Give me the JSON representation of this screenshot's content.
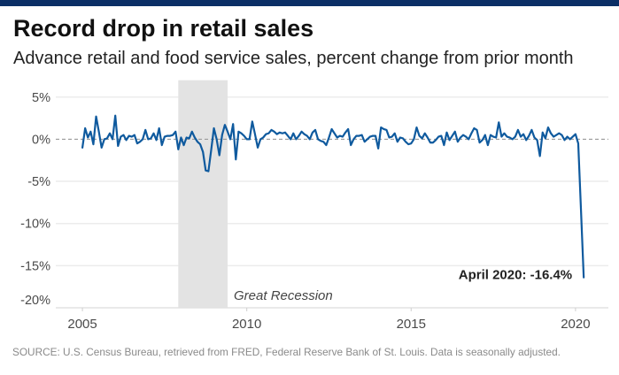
{
  "header": {
    "brand_bar_color": "#0b2f66"
  },
  "title": "Record drop in retail sales",
  "subtitle": "Advance retail and food service sales, percent change from prior month",
  "source": "SOURCE: U.S. Census Bureau, retrieved from FRED, Federal Reserve Bank of St. Louis. Data is seasonally adjusted.",
  "chart_data": {
    "type": "line",
    "title": "Record drop in retail sales",
    "subtitle": "Advance retail and food service sales, percent change from prior month",
    "xlabel": "",
    "ylabel": "",
    "x_start": "2005-01",
    "x_end": "2020-04",
    "frequency": "monthly",
    "xlim": [
      2004.19,
      2021.0
    ],
    "ylim": [
      -20,
      7
    ],
    "grid": true,
    "zero_line": "dashed",
    "legend": "none",
    "x_ticks": [
      {
        "value": 2005,
        "label": "2005"
      },
      {
        "value": 2010,
        "label": "2010"
      },
      {
        "value": 2015,
        "label": "2015"
      },
      {
        "value": 2020,
        "label": "2020"
      }
    ],
    "y_ticks": [
      {
        "value": 5,
        "label": "5%"
      },
      {
        "value": 0,
        "label": "0%"
      },
      {
        "value": -5,
        "label": "-5%"
      },
      {
        "value": -10,
        "label": "-10%"
      },
      {
        "value": -15,
        "label": "-15%"
      },
      {
        "value": -20,
        "label": "-20%"
      }
    ],
    "series": [
      {
        "name": "Advance retail and food service sales, % change from prior month",
        "color": "#0f5a9e",
        "values": [
          -1.0,
          1.3,
          0.2,
          0.9,
          -0.6,
          2.7,
          0.9,
          -1.0,
          0.0,
          0.1,
          0.7,
          0.0,
          2.8,
          -0.8,
          0.3,
          0.5,
          -0.1,
          0.4,
          0.3,
          0.5,
          -0.5,
          -0.3,
          0.0,
          1.1,
          0.0,
          0.1,
          0.7,
          -0.1,
          1.3,
          -0.7,
          0.3,
          0.4,
          0.4,
          0.5,
          0.9,
          -1.2,
          0.2,
          -0.7,
          0.2,
          0.1,
          0.9,
          0.2,
          -0.3,
          -0.6,
          -1.5,
          -3.7,
          -3.8,
          -1.3,
          1.3,
          0.0,
          -1.9,
          0.5,
          1.7,
          0.9,
          0.0,
          1.8,
          -2.4,
          0.9,
          0.7,
          0.4,
          0.0,
          0.0,
          2.1,
          0.6,
          -1.0,
          0.0,
          0.2,
          0.6,
          0.7,
          1.1,
          0.9,
          0.6,
          0.8,
          0.7,
          0.8,
          0.4,
          0.0,
          0.7,
          0.0,
          0.4,
          0.9,
          0.6,
          0.4,
          0.0,
          0.8,
          1.1,
          0.0,
          -0.2,
          -0.3,
          -0.7,
          0.2,
          1.2,
          0.7,
          0.2,
          0.4,
          0.3,
          0.8,
          1.2,
          -0.7,
          0.0,
          0.4,
          0.4,
          0.5,
          -0.3,
          0.0,
          0.3,
          0.4,
          0.4,
          -1.1,
          1.4,
          1.2,
          1.1,
          0.2,
          0.3,
          0.7,
          -0.3,
          0.2,
          0.1,
          -0.3,
          -0.6,
          -0.5,
          0.0,
          1.4,
          0.4,
          0.1,
          0.7,
          0.2,
          -0.4,
          -0.4,
          -0.1,
          0.3,
          0.4,
          -0.7,
          0.8,
          -0.1,
          0.4,
          0.9,
          -0.3,
          0.2,
          0.5,
          0.3,
          0.0,
          0.7,
          1.3,
          1.1,
          -0.4,
          -0.1,
          0.5,
          -0.7,
          0.5,
          0.3,
          0.2,
          2.0,
          0.3,
          0.7,
          0.3,
          0.2,
          0.0,
          0.3,
          1.1,
          0.3,
          0.6,
          -0.1,
          0.4,
          1.1,
          0.2,
          -0.1,
          -2.0,
          0.8,
          0.1,
          1.4,
          0.7,
          0.3,
          0.5,
          0.7,
          0.5,
          -0.1,
          0.3,
          0.0,
          0.3,
          0.6,
          -0.5,
          -8.4,
          -16.4
        ]
      }
    ],
    "shaded_regions": [
      {
        "label": "Great Recession",
        "start": "2007-12",
        "end": "2009-06",
        "color": "#e3e3e3"
      }
    ],
    "annotations": [
      {
        "text": "April 2020: -16.4%",
        "x": "2020-04",
        "y": -16.4
      }
    ]
  }
}
